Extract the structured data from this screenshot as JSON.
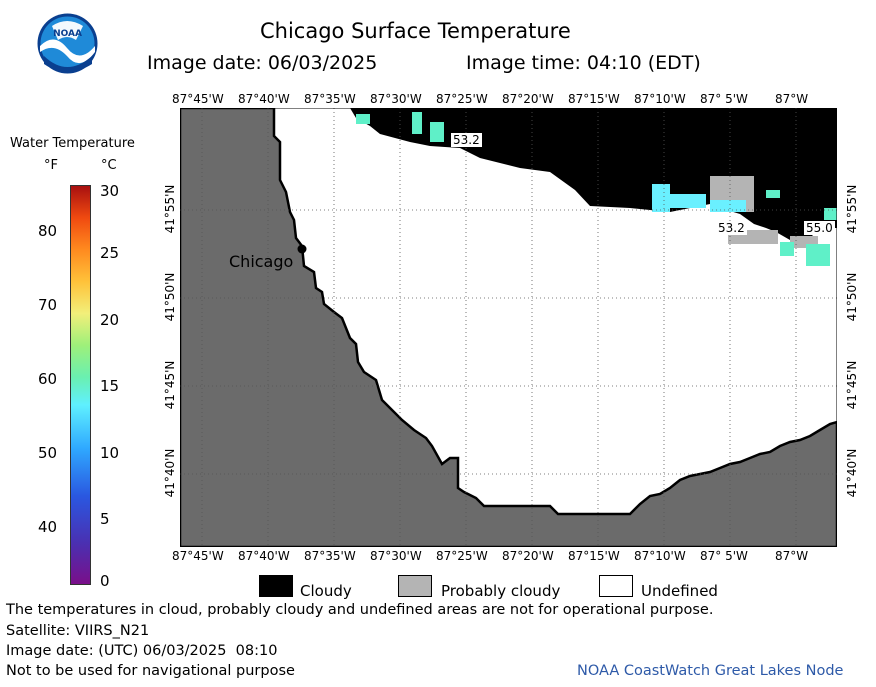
{
  "header": {
    "title": "Chicago Surface Temperature",
    "image_date": "Image date: 06/03/2025",
    "image_time": "Image time: 04:10 (EDT)"
  },
  "logo": {
    "text": "NOAA"
  },
  "colorbar": {
    "title": "Water Temperature",
    "unit_f": "°F",
    "unit_c": "°C",
    "f_ticks": [
      "80",
      "70",
      "60",
      "50",
      "40"
    ],
    "c_ticks": [
      "30",
      "25",
      "20",
      "15",
      "10",
      "5",
      "0"
    ]
  },
  "map": {
    "lon_labels": [
      "87°45'W",
      "87°40'W",
      "87°35'W",
      "87°30'W",
      "87°25'W",
      "87°20'W",
      "87°15'W",
      "87°10'W",
      "87° 5'W",
      "87°W"
    ],
    "lat_labels": [
      "41°55'N",
      "41°50'N",
      "41°45'N",
      "41°40'N"
    ],
    "city": "Chicago",
    "temp_labels": [
      "53.2",
      "53.2",
      "55.0"
    ],
    "colors": {
      "land": "#6b6b6b",
      "cloudy": "#000000",
      "probably_cloudy": "#b4b4b4",
      "undefined": "#ffffff",
      "water_teal": "#5ff0c8",
      "water_cyan": "#6af0ff"
    }
  },
  "legend": {
    "items": [
      {
        "label": "Cloudy",
        "color": "#000000"
      },
      {
        "label": "Probably cloudy",
        "color": "#b4b4b4"
      },
      {
        "label": "Undefined",
        "color": "#ffffff"
      }
    ]
  },
  "footer": {
    "disclaimer": "The temperatures in cloud, probably cloudy and undefined areas are not for operational purpose.",
    "satellite": "Satellite: VIIRS_N21",
    "utc_date": "Image date: (UTC) 06/03/2025  08:10",
    "nav_warning": "Not to be used for navigational purpose",
    "credit": "NOAA CoastWatch Great Lakes Node"
  }
}
